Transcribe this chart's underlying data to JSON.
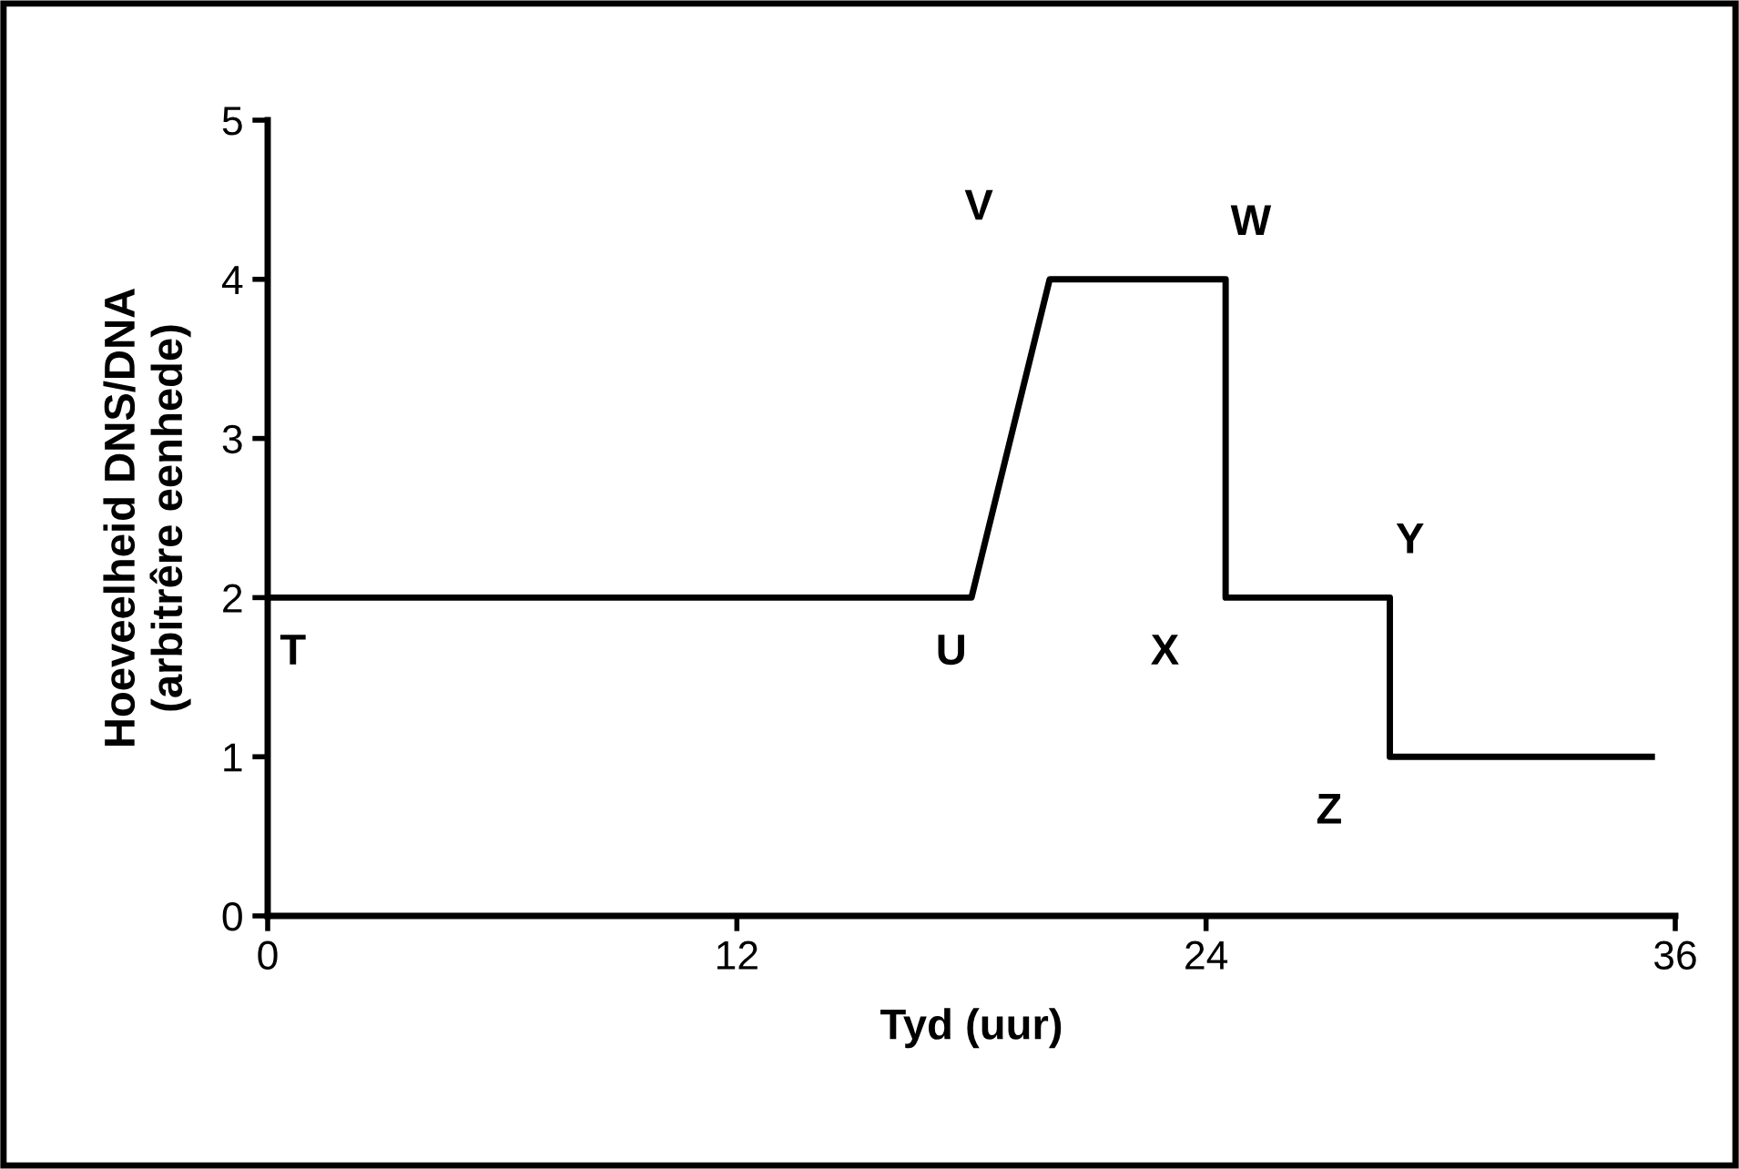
{
  "chart_data": {
    "type": "line",
    "xlabel": "Tyd (uur)",
    "ylabel": "Hoeveelheid DNS/DNA\n(arbitrêre eenhede)",
    "x": [
      0,
      18,
      20,
      24.5,
      24.5,
      28.7,
      28.7,
      35.4
    ],
    "series": [
      {
        "color": "#000000",
        "values": [
          2,
          2,
          4,
          4,
          2,
          2,
          1,
          1
        ]
      }
    ],
    "xlim": [
      0,
      36
    ],
    "xticks": [
      0,
      12,
      24,
      36
    ],
    "ylim": [
      0,
      5
    ],
    "yticks": [
      0,
      1,
      2,
      3,
      4,
      5
    ],
    "grid": false,
    "legend": false,
    "marker": "none",
    "line_style": "solid",
    "annotations": [
      {
        "text": "T",
        "x": 0,
        "y": 2
      },
      {
        "text": "U",
        "x": 18,
        "y": 2
      },
      {
        "text": "V",
        "x": 20,
        "y": 4
      },
      {
        "text": "W",
        "x": 24.5,
        "y": 4
      },
      {
        "text": "X",
        "x": 24.5,
        "y": 2
      },
      {
        "text": "Y",
        "x": 28.7,
        "y": 2
      },
      {
        "text": "Z",
        "x": 28.7,
        "y": 1
      }
    ]
  }
}
